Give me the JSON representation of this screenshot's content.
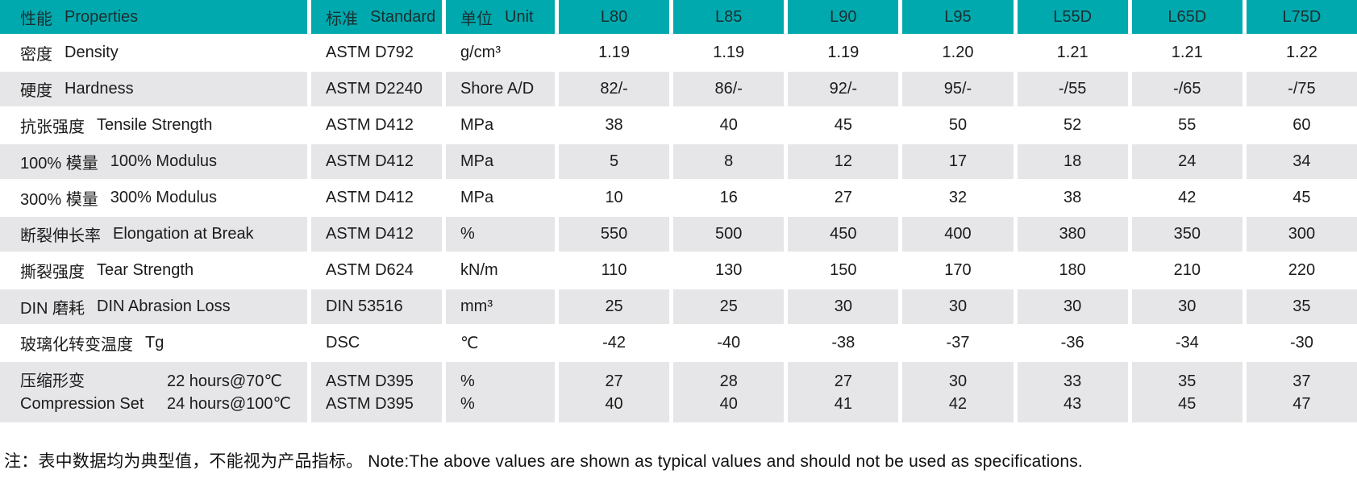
{
  "colors": {
    "header_bg": "#00a9ae",
    "alt_row_bg": "#e6e6e8",
    "row_bg": "#ffffff"
  },
  "table": {
    "header": {
      "properties": {
        "zh": "性能",
        "en": "Properties"
      },
      "standard": {
        "zh": "标准",
        "en": "Standard"
      },
      "unit": {
        "zh": "单位",
        "en": "Unit"
      },
      "grades": [
        "L80",
        "L85",
        "L90",
        "L95",
        "L55D",
        "L65D",
        "L75D"
      ]
    },
    "rows": [
      {
        "property": {
          "zh": "密度",
          "en": "Density"
        },
        "standard": "ASTM D792",
        "unit": "g/cm³",
        "values": [
          "1.19",
          "1.19",
          "1.19",
          "1.20",
          "1.21",
          "1.21",
          "1.22"
        ]
      },
      {
        "property": {
          "zh": "硬度",
          "en": "Hardness"
        },
        "standard": "ASTM D2240",
        "unit": "Shore A/D",
        "values": [
          "82/-",
          "86/-",
          "92/-",
          "95/-",
          "-/55",
          "-/65",
          "-/75"
        ]
      },
      {
        "property": {
          "zh": "抗张强度",
          "en": "Tensile Strength"
        },
        "standard": "ASTM D412",
        "unit": "MPa",
        "values": [
          "38",
          "40",
          "45",
          "50",
          "52",
          "55",
          "60"
        ]
      },
      {
        "property": {
          "zh": "100% 模量",
          "en": "100% Modulus"
        },
        "standard": "ASTM D412",
        "unit": "MPa",
        "values": [
          "5",
          "8",
          "12",
          "17",
          "18",
          "24",
          "34"
        ]
      },
      {
        "property": {
          "zh": "300% 模量",
          "en": "300% Modulus"
        },
        "standard": "ASTM D412",
        "unit": "MPa",
        "values": [
          "10",
          "16",
          "27",
          "32",
          "38",
          "42",
          "45"
        ]
      },
      {
        "property": {
          "zh": "断裂伸长率",
          "en": "Elongation at Break"
        },
        "standard": "ASTM D412",
        "unit": "%",
        "values": [
          "550",
          "500",
          "450",
          "400",
          "380",
          "350",
          "300"
        ]
      },
      {
        "property": {
          "zh": "撕裂强度",
          "en": "Tear Strength"
        },
        "standard": "ASTM D624",
        "unit": "kN/m",
        "values": [
          "110",
          "130",
          "150",
          "170",
          "180",
          "210",
          "220"
        ]
      },
      {
        "property": {
          "zh": "DIN 磨耗",
          "en": "DIN Abrasion Loss"
        },
        "standard": "DIN 53516",
        "unit": "mm³",
        "values": [
          "25",
          "25",
          "30",
          "30",
          "30",
          "30",
          "35"
        ]
      },
      {
        "property": {
          "zh": "玻璃化转变温度",
          "en": "Tg"
        },
        "standard": "DSC",
        "unit": "℃",
        "values": [
          "-42",
          "-40",
          "-38",
          "-37",
          "-36",
          "-34",
          "-30"
        ]
      }
    ],
    "compression": {
      "property": {
        "zh": "压缩形变",
        "en": "Compression Set"
      },
      "conditions": [
        "22 hours@70℃",
        "24 hours@100℃"
      ],
      "standards": [
        "ASTM D395",
        "ASTM D395"
      ],
      "units": [
        "%",
        "%"
      ],
      "values": [
        [
          "27",
          "40"
        ],
        [
          "28",
          "40"
        ],
        [
          "27",
          "41"
        ],
        [
          "30",
          "42"
        ],
        [
          "33",
          "43"
        ],
        [
          "35",
          "45"
        ],
        [
          "37",
          "47"
        ]
      ]
    },
    "note": "注：表中数据均为典型值，不能视为产品指标。 Note:The above values are shown as typical values and should not be used as specifications."
  }
}
